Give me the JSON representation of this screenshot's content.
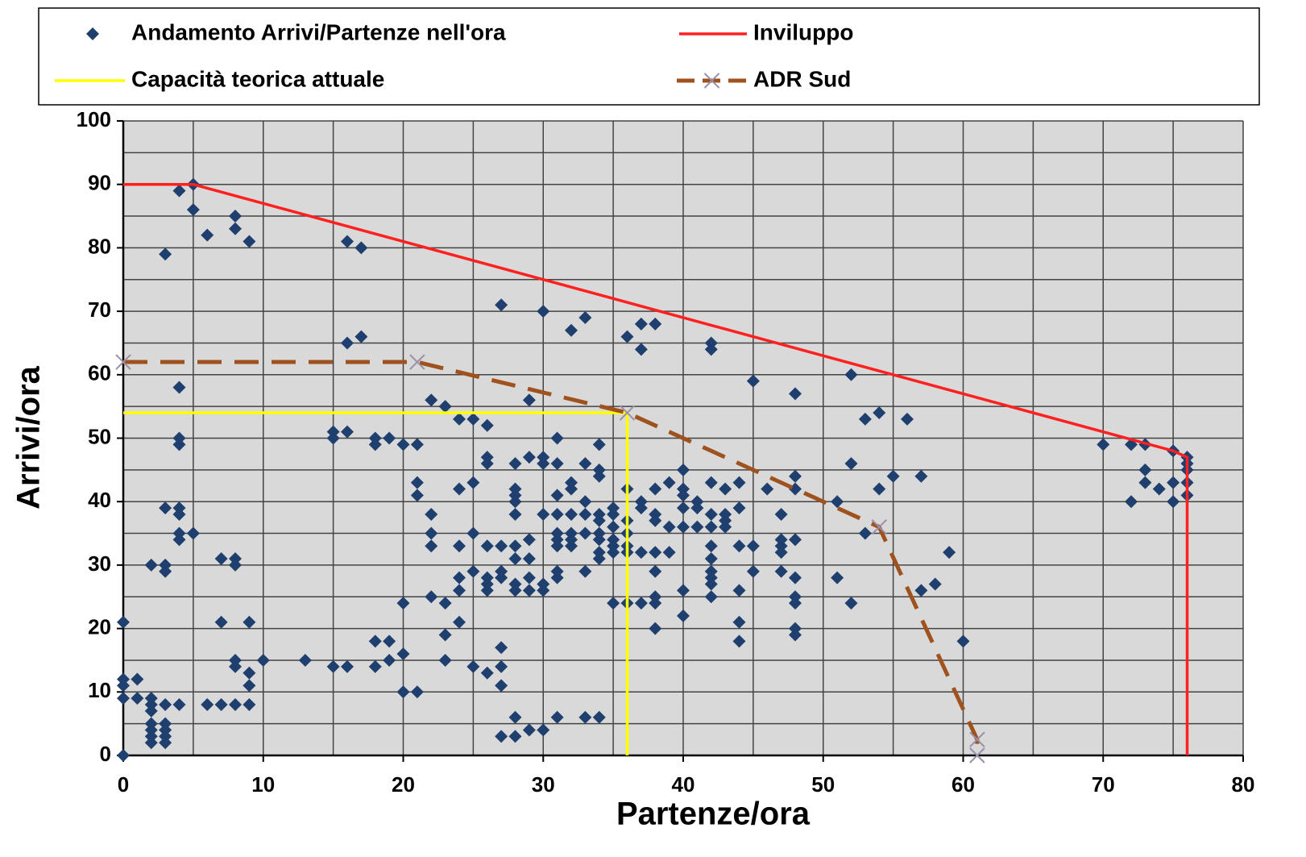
{
  "chart_data": {
    "type": "scatter",
    "xlabel": "Partenze/ora",
    "ylabel": "Arrivi/ora",
    "xlim": [
      0,
      80
    ],
    "ylim": [
      0,
      100
    ],
    "xticks": [
      0,
      10,
      20,
      30,
      40,
      50,
      60,
      70,
      80
    ],
    "yticks": [
      0,
      10,
      20,
      30,
      40,
      50,
      60,
      70,
      80,
      90,
      100
    ],
    "xminorticks": [
      5,
      15,
      25,
      35,
      45,
      55,
      65,
      75
    ],
    "yminorticks": [
      5,
      15,
      25,
      35,
      45,
      55,
      65,
      75,
      85,
      95
    ],
    "grid": true,
    "legend": "top",
    "series": [
      {
        "name": "Andamento Arrivi/Partenze nell'ora",
        "color": "#1f3f6e",
        "marker": "diamond",
        "x": [
          0,
          0,
          0,
          0,
          0,
          1,
          1,
          2,
          2,
          2,
          2,
          2,
          2,
          2,
          3,
          3,
          3,
          3,
          3,
          4,
          2,
          3,
          3,
          3,
          4,
          4,
          4,
          4,
          5,
          4,
          4,
          4,
          3,
          4,
          5,
          5,
          6,
          8,
          8,
          9,
          6,
          7,
          8,
          9,
          9,
          9,
          8,
          8,
          10,
          7,
          9,
          7,
          8,
          8,
          13,
          15,
          16,
          15,
          15,
          16,
          16,
          17,
          16,
          17,
          18,
          18,
          19,
          19,
          20,
          18,
          18,
          19,
          20,
          21,
          20,
          21,
          20,
          21,
          21,
          22,
          23,
          22,
          22,
          22,
          22,
          23,
          23,
          23,
          24,
          24,
          24,
          24,
          24,
          24,
          25,
          25,
          25,
          25,
          25,
          26,
          26,
          26,
          26,
          26,
          26,
          26,
          26,
          27,
          27,
          27,
          27,
          27,
          27,
          27,
          27,
          28,
          28,
          28,
          28,
          28,
          28,
          28,
          28,
          28,
          28,
          28,
          29,
          29,
          29,
          29,
          29,
          29,
          29,
          30,
          30,
          30,
          30,
          30,
          30,
          30,
          31,
          31,
          31,
          31,
          31,
          31,
          31,
          31,
          31,
          31,
          32,
          32,
          32,
          32,
          32,
          32,
          32,
          33,
          33,
          33,
          33,
          33,
          33,
          33,
          34,
          34,
          34,
          34,
          34,
          34,
          34,
          34,
          34,
          34,
          35,
          35,
          35,
          35,
          35,
          35,
          35,
          36,
          36,
          36,
          36,
          36,
          36,
          36,
          37,
          37,
          37,
          37,
          37,
          37,
          38,
          38,
          38,
          38,
          38,
          38,
          38,
          38,
          38,
          39,
          39,
          39,
          40,
          40,
          40,
          40,
          40,
          40,
          40,
          41,
          41,
          41,
          42,
          42,
          42,
          42,
          42,
          42,
          42,
          42,
          42,
          42,
          42,
          43,
          43,
          43,
          43,
          44,
          44,
          44,
          44,
          44,
          44,
          45,
          45,
          45,
          46,
          47,
          47,
          47,
          47,
          47,
          48,
          48,
          48,
          48,
          48,
          48,
          48,
          48,
          48,
          51,
          51,
          52,
          52,
          52,
          53,
          53,
          54,
          54,
          55,
          56,
          57,
          57,
          58,
          59,
          60,
          70,
          72,
          72,
          73,
          73,
          73,
          74,
          75,
          75,
          75,
          76,
          76,
          76,
          76,
          76
        ],
        "values": [
          0,
          9,
          11,
          12,
          21,
          12,
          9,
          9,
          8,
          7,
          5,
          4,
          3,
          2,
          2,
          3,
          4,
          5,
          8,
          8,
          30,
          30,
          29,
          39,
          39,
          38,
          35,
          34,
          35,
          49,
          50,
          58,
          79,
          89,
          90,
          86,
          82,
          85,
          83,
          81,
          8,
          8,
          8,
          8,
          11,
          13,
          14,
          15,
          15,
          21,
          21,
          31,
          31,
          30,
          15,
          14,
          14,
          50,
          51,
          51,
          65,
          66,
          81,
          80,
          14,
          18,
          18,
          15,
          16,
          49,
          50,
          50,
          49,
          49,
          10,
          10,
          24,
          41,
          43,
          56,
          55,
          38,
          35,
          33,
          25,
          24,
          19,
          15,
          21,
          26,
          28,
          33,
          42,
          53,
          53,
          43,
          35,
          29,
          14,
          13,
          52,
          46,
          47,
          33,
          28,
          27,
          26,
          33,
          29,
          28,
          17,
          14,
          11,
          3,
          71,
          3,
          6,
          26,
          27,
          31,
          33,
          38,
          40,
          41,
          42,
          46,
          47,
          56,
          34,
          31,
          28,
          26,
          4,
          4,
          26,
          27,
          38,
          46,
          47,
          70,
          50,
          46,
          41,
          38,
          35,
          34,
          33,
          29,
          28,
          6,
          67,
          43,
          42,
          38,
          35,
          34,
          33,
          69,
          46,
          40,
          38,
          35,
          29,
          6,
          6,
          49,
          45,
          44,
          38,
          37,
          35,
          34,
          32,
          31,
          39,
          38,
          36,
          34,
          33,
          32,
          24,
          42,
          37,
          35,
          33,
          32,
          24,
          66,
          68,
          64,
          40,
          39,
          32,
          24,
          68,
          42,
          38,
          37,
          32,
          29,
          25,
          24,
          20,
          43,
          32,
          36,
          45,
          42,
          41,
          39,
          36,
          26,
          22,
          40,
          39,
          36,
          65,
          64,
          43,
          38,
          36,
          33,
          31,
          29,
          28,
          27,
          25,
          42,
          38,
          37,
          36,
          43,
          39,
          33,
          26,
          21,
          18,
          59,
          33,
          29,
          42,
          38,
          34,
          33,
          32,
          29,
          57,
          44,
          42,
          34,
          28,
          25,
          24,
          20,
          19,
          40,
          28,
          60,
          46,
          24,
          53,
          35,
          54,
          42,
          44,
          53,
          44,
          26,
          27,
          32,
          18,
          49,
          49,
          40,
          49,
          45,
          43,
          42,
          48,
          43,
          40,
          47,
          46,
          45,
          43,
          41
        ]
      },
      {
        "name": "Inviluppo",
        "color": "#ff2020",
        "line": "solid",
        "x": [
          0,
          5,
          75,
          76,
          76
        ],
        "values": [
          90,
          90,
          48,
          47,
          0
        ]
      },
      {
        "name": "Capacità teorica attuale",
        "color": "#ffff00",
        "line": "solid",
        "x": [
          0,
          36,
          36
        ],
        "values": [
          54,
          54,
          0
        ]
      },
      {
        "name": "ADR Sud",
        "color": "#a0521e",
        "line": "dashed",
        "marker": "x",
        "marker_color": "#9a8fa8",
        "x": [
          0,
          21,
          36,
          54,
          61,
          61
        ],
        "values": [
          62,
          62,
          54,
          36,
          2.5,
          0
        ]
      }
    ]
  }
}
